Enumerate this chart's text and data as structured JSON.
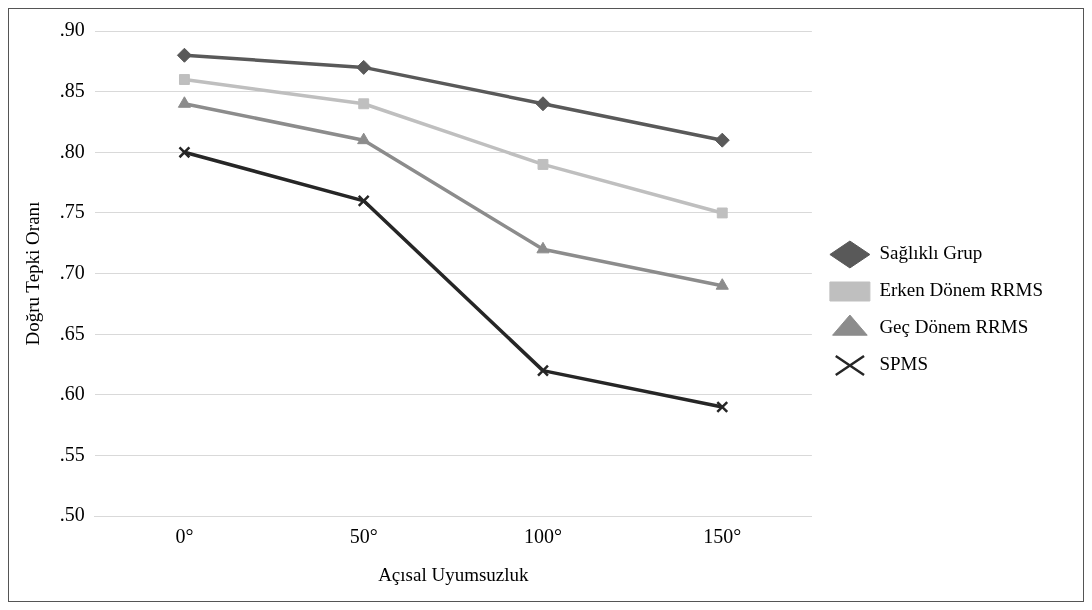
{
  "chart_data": {
    "type": "line",
    "xlabel": "Açısal Uyumsuzluk",
    "ylabel": "Doğru Tepki Oranı",
    "categories": [
      "0°",
      "50°",
      "100°",
      "150°"
    ],
    "series": [
      {
        "name": "Sağlıklı Grup",
        "color": "#595959",
        "marker": "diamond",
        "values": [
          0.88,
          0.87,
          0.84,
          0.81
        ]
      },
      {
        "name": "Erken Dönem RRMS",
        "color": "#bfbfbf",
        "marker": "square",
        "values": [
          0.86,
          0.84,
          0.79,
          0.75
        ]
      },
      {
        "name": "Geç Dönem RRMS",
        "color": "#8c8c8c",
        "marker": "triangle",
        "values": [
          0.84,
          0.81,
          0.72,
          0.69
        ]
      },
      {
        "name": "SPMS",
        "color": "#262626",
        "marker": "cross",
        "values": [
          0.8,
          0.76,
          0.62,
          0.59
        ]
      }
    ],
    "ylim": [
      0.5,
      0.9
    ],
    "yticks": [
      {
        "value": 0.5,
        "label": ".50"
      },
      {
        "value": 0.55,
        "label": ".55"
      },
      {
        "value": 0.6,
        "label": ".60"
      },
      {
        "value": 0.65,
        "label": ".65"
      },
      {
        "value": 0.7,
        "label": ".70"
      },
      {
        "value": 0.75,
        "label": ".75"
      },
      {
        "value": 0.8,
        "label": ".80"
      },
      {
        "value": 0.85,
        "label": ".85"
      },
      {
        "value": 0.9,
        "label": ".90"
      }
    ],
    "grid": "y",
    "legend": "right"
  }
}
